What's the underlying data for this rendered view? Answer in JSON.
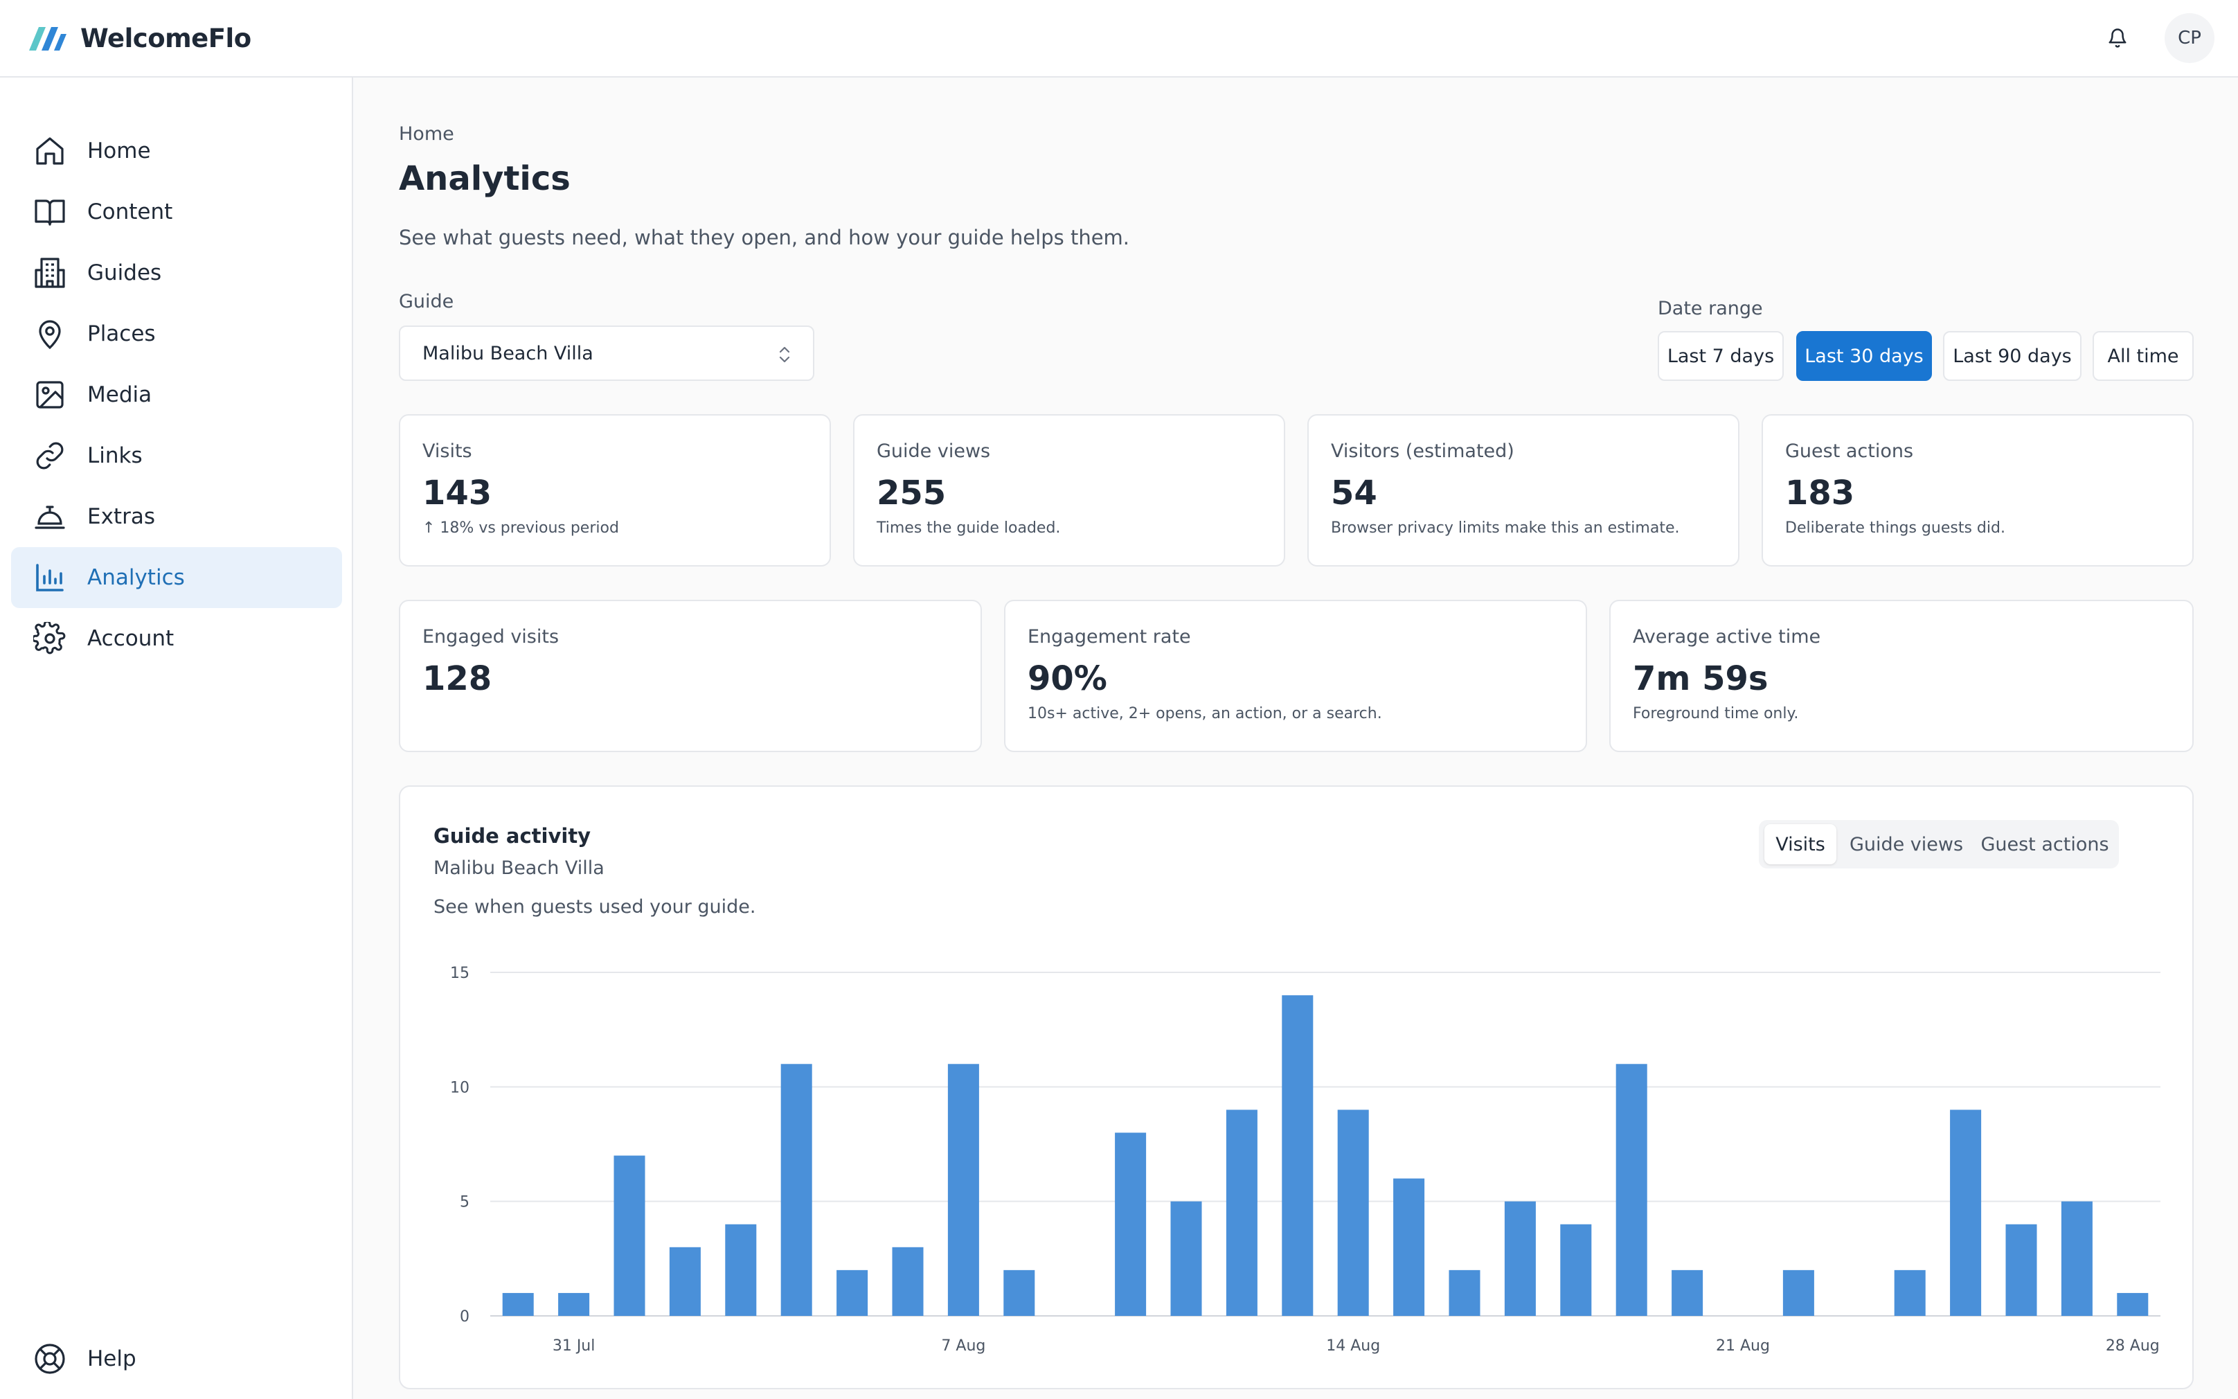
{
  "app": {
    "name": "WelcomeFlo",
    "user_initials": "CP"
  },
  "sidebar": {
    "items": [
      {
        "label": "Home",
        "icon": "home-icon"
      },
      {
        "label": "Content",
        "icon": "book-icon"
      },
      {
        "label": "Guides",
        "icon": "building-icon"
      },
      {
        "label": "Places",
        "icon": "map-pin-icon"
      },
      {
        "label": "Media",
        "icon": "image-icon"
      },
      {
        "label": "Links",
        "icon": "link-icon"
      },
      {
        "label": "Extras",
        "icon": "bell-service-icon"
      },
      {
        "label": "Analytics",
        "icon": "bar-chart-icon",
        "active": true
      },
      {
        "label": "Account",
        "icon": "gear-icon"
      }
    ],
    "help_label": "Help"
  },
  "page": {
    "breadcrumb": "Home",
    "title": "Analytics",
    "description": "See what guests need, what they open, and how your guide helps them."
  },
  "filters": {
    "guide_label": "Guide",
    "guide_value": "Malibu Beach Villa",
    "range_label": "Date range",
    "ranges": [
      "Last 7 days",
      "Last 30 days",
      "Last 90 days",
      "All time"
    ],
    "selected_range": "Last 30 days"
  },
  "stats_row1": [
    {
      "label": "Visits",
      "value": "143",
      "note": "↑ 18% vs previous period"
    },
    {
      "label": "Guide views",
      "value": "255",
      "note": "Times the guide loaded."
    },
    {
      "label": "Visitors (estimated)",
      "value": "54",
      "note": "Browser privacy limits make this an estimate."
    },
    {
      "label": "Guest actions",
      "value": "183",
      "note": "Deliberate things guests did."
    }
  ],
  "stats_row2": [
    {
      "label": "Engaged visits",
      "value": "128",
      "note": ""
    },
    {
      "label": "Engagement rate",
      "value": "90%",
      "note": "10s+ active, 2+ opens, an action, or a search."
    },
    {
      "label": "Average active time",
      "value": "7m 59s",
      "note": "Foreground time only."
    }
  ],
  "chart_panel": {
    "title": "Guide activity",
    "subtitle": "Malibu Beach Villa",
    "description": "See when guests used your guide.",
    "tabs": [
      "Visits",
      "Guide views",
      "Guest actions"
    ],
    "active_tab": "Visits"
  },
  "colors": {
    "accent": "#1976d2",
    "bar": "#4a90d9",
    "active_nav_bg": "#e8f1fb"
  },
  "chart_data": {
    "type": "bar",
    "categories": [
      "30 Jul",
      "31 Jul",
      "1 Aug",
      "2 Aug",
      "3 Aug",
      "4 Aug",
      "5 Aug",
      "6 Aug",
      "7 Aug",
      "8 Aug",
      "9 Aug",
      "10 Aug",
      "11 Aug",
      "12 Aug",
      "13 Aug",
      "14 Aug",
      "15 Aug",
      "16 Aug",
      "17 Aug",
      "18 Aug",
      "19 Aug",
      "20 Aug",
      "21 Aug",
      "22 Aug",
      "23 Aug",
      "24 Aug",
      "25 Aug",
      "26 Aug",
      "27 Aug",
      "28 Aug"
    ],
    "values": [
      1,
      1,
      7,
      3,
      4,
      11,
      2,
      3,
      11,
      2,
      0,
      8,
      5,
      9,
      14,
      9,
      6,
      2,
      5,
      4,
      11,
      2,
      0,
      2,
      0,
      2,
      9,
      4,
      5,
      1
    ],
    "x_tick_labels": [
      "31 Jul",
      "7 Aug",
      "14 Aug",
      "21 Aug",
      "28 Aug"
    ],
    "y_ticks": [
      0,
      5,
      10,
      15
    ],
    "ylim": [
      0,
      15
    ],
    "grid": true,
    "xlabel": "",
    "ylabel": ""
  }
}
